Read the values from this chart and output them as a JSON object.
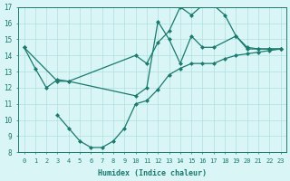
{
  "line1_x": [
    0,
    1,
    2,
    3,
    4,
    10,
    11,
    12,
    13,
    14,
    15,
    16,
    17,
    19,
    20,
    21,
    22,
    23
  ],
  "line1_y": [
    14.5,
    13.2,
    12.0,
    12.5,
    12.4,
    11.5,
    12.0,
    16.1,
    15.0,
    13.5,
    15.2,
    14.5,
    14.5,
    15.2,
    14.4,
    14.4,
    14.4,
    14.4
  ],
  "line2_x": [
    0,
    3,
    4,
    10,
    11,
    12,
    13,
    14,
    15,
    16,
    17,
    18,
    19,
    20,
    21,
    22,
    23
  ],
  "line2_y": [
    14.5,
    12.4,
    12.4,
    14.0,
    13.5,
    14.8,
    15.5,
    17.0,
    16.5,
    17.1,
    17.1,
    16.5,
    15.2,
    14.5,
    14.4,
    14.4,
    14.4
  ],
  "line3_x": [
    3,
    4,
    5,
    6,
    7,
    8,
    9,
    10,
    11,
    12,
    13,
    14,
    15,
    16,
    17,
    18,
    19,
    20,
    21,
    22,
    23
  ],
  "line3_y": [
    10.3,
    9.5,
    8.7,
    8.3,
    8.3,
    8.7,
    9.5,
    11.0,
    11.2,
    11.9,
    12.8,
    13.2,
    13.5,
    13.5,
    13.5,
    13.8,
    14.0,
    14.1,
    14.2,
    14.3,
    14.4
  ],
  "color": "#1a7a6e",
  "bg_color": "#d9f5f5",
  "grid_color": "#b0e0e0",
  "xlabel": "Humidex (Indice chaleur)",
  "xlim": [
    -0.5,
    23.5
  ],
  "ylim": [
    8,
    17
  ],
  "xticks": [
    0,
    1,
    2,
    3,
    4,
    5,
    6,
    7,
    8,
    9,
    10,
    11,
    12,
    13,
    14,
    15,
    16,
    17,
    18,
    19,
    20,
    21,
    22,
    23
  ],
  "yticks": [
    8,
    9,
    10,
    11,
    12,
    13,
    14,
    15,
    16,
    17
  ],
  "markersize": 2.5,
  "linewidth": 0.9
}
